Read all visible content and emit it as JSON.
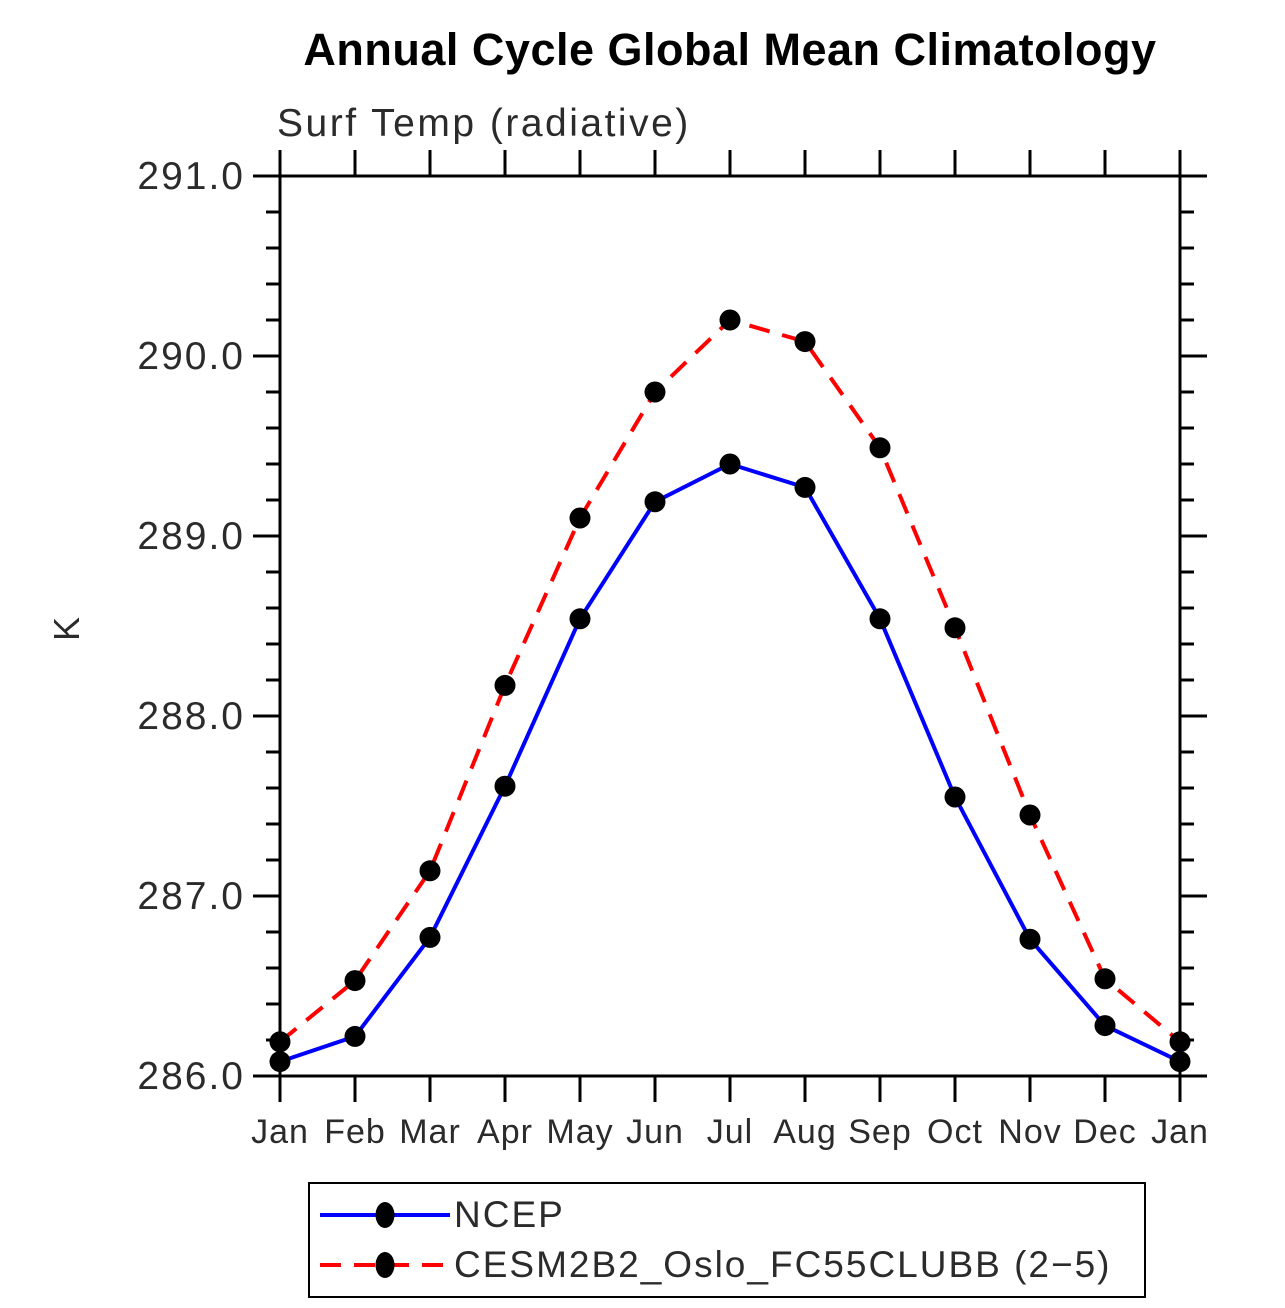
{
  "chart_data": {
    "type": "line",
    "title": "Annual Cycle Global Mean Climatology",
    "subtitle": "Surf Temp (radiative)",
    "ylabel": "K",
    "x_categories": [
      "Jan",
      "Feb",
      "Mar",
      "Apr",
      "May",
      "Jun",
      "Jul",
      "Aug",
      "Sep",
      "Oct",
      "Nov",
      "Dec",
      "Jan"
    ],
    "series": [
      {
        "name": "NCEP",
        "color": "#0000ff",
        "style": "solid",
        "marker": "black-dot",
        "values": [
          286.08,
          286.22,
          286.77,
          287.61,
          288.54,
          289.19,
          289.4,
          289.27,
          288.54,
          287.55,
          286.76,
          286.28,
          286.08
        ]
      },
      {
        "name": "CESM2B2_Oslo_FC55CLUBB (2−5)",
        "color": "#ff0000",
        "style": "dashed",
        "marker": "black-dot",
        "values": [
          286.19,
          286.53,
          287.14,
          288.17,
          289.1,
          289.8,
          290.2,
          290.08,
          289.49,
          288.49,
          287.45,
          286.54,
          286.19
        ]
      }
    ],
    "ylim": [
      286.0,
      291.0
    ],
    "ytick_major": [
      286,
      287,
      288,
      289,
      290,
      291
    ],
    "ytick_labels": [
      "286.0",
      "287.0",
      "288.0",
      "289.0",
      "290.0",
      "291.0"
    ],
    "ytick_minor_step": 0.2,
    "grid": false,
    "legend_position": "bottom",
    "marker_color": "#000000",
    "axis_color": "#000000",
    "text_color": "#2b2b2b"
  }
}
